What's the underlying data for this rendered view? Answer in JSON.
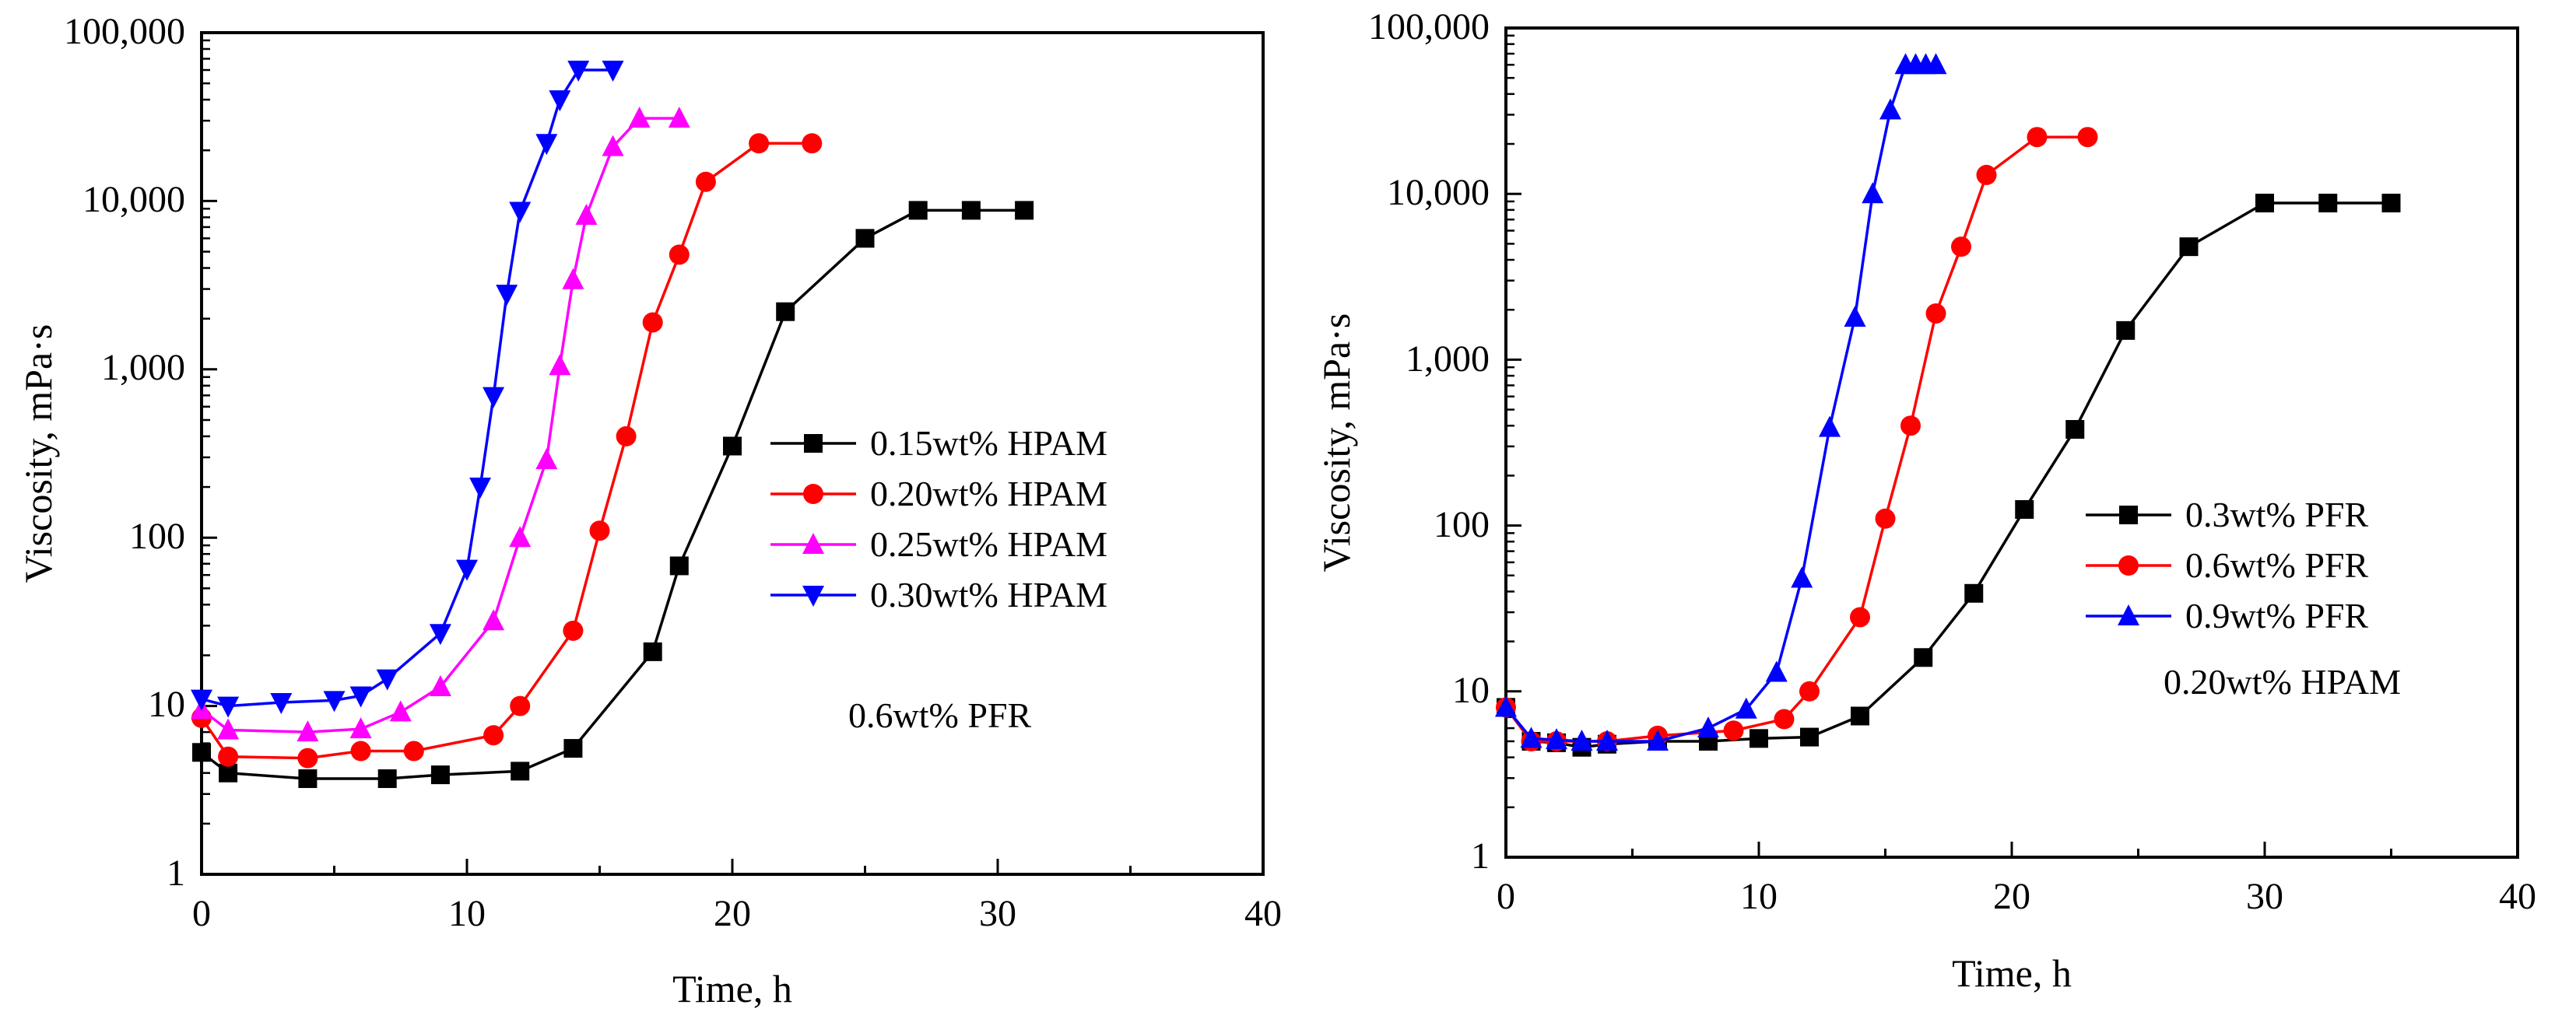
{
  "chart_data": [
    {
      "type": "line",
      "panel": "left",
      "title": "",
      "xlabel": "Time, h",
      "ylabel": "Viscosity, mPa·s",
      "xlim": [
        0,
        40
      ],
      "ylim": [
        1,
        100000
      ],
      "yscale": "log",
      "xticks": [
        0,
        10,
        20,
        30,
        40
      ],
      "xtick_labels": [
        "0",
        "10",
        "20",
        "30",
        "40"
      ],
      "yticks": [
        1,
        10,
        100,
        1000,
        10000,
        100000
      ],
      "ytick_labels": [
        "1",
        "10",
        "100",
        "1,000",
        "10,000",
        "100,000"
      ],
      "grid": false,
      "legend_position": "center-right",
      "annotation": "0.6wt% PFR",
      "series": [
        {
          "name": "0.15wt% HPAM",
          "color": "#000000",
          "marker": "square",
          "x": [
            0,
            1,
            4,
            7,
            9,
            12,
            14,
            17,
            18,
            20,
            22,
            25,
            27,
            29,
            31
          ],
          "y": [
            5.3,
            4.0,
            3.7,
            3.7,
            3.9,
            4.1,
            5.6,
            21,
            68,
            350,
            2200,
            6000,
            8800,
            8800,
            8800
          ]
        },
        {
          "name": "0.20wt% HPAM",
          "color": "#ff0000",
          "marker": "circle",
          "x": [
            0,
            1,
            4,
            6,
            8,
            11,
            12,
            14,
            15,
            16,
            17,
            18,
            19,
            21,
            23
          ],
          "y": [
            8.5,
            5.0,
            4.9,
            5.4,
            5.4,
            6.7,
            10,
            28,
            110,
            400,
            1900,
            4800,
            13000,
            22000,
            22000
          ]
        },
        {
          "name": "0.25wt% HPAM",
          "color": "#ff00ff",
          "marker": "triangle-up",
          "x": [
            0,
            1,
            4,
            6,
            7.5,
            9,
            11,
            12,
            13,
            13.5,
            14,
            14.5,
            15.5,
            16.5,
            18
          ],
          "y": [
            9.5,
            7.2,
            7.0,
            7.3,
            9.2,
            13,
            32,
            100,
            290,
            1050,
            3400,
            8200,
            21000,
            31000,
            31000
          ]
        },
        {
          "name": "0.30wt% HPAM",
          "color": "#0000ff",
          "marker": "triangle-down",
          "x": [
            0,
            1,
            3,
            5,
            6,
            7,
            9,
            10,
            10.5,
            11,
            11.5,
            12,
            13,
            13.5,
            14.2,
            15.5
          ],
          "y": [
            11,
            10,
            10.5,
            10.8,
            11.5,
            14.5,
            27,
            65,
            200,
            690,
            2800,
            8700,
            22000,
            40000,
            60000,
            60000
          ]
        }
      ]
    },
    {
      "type": "line",
      "panel": "right",
      "title": "",
      "xlabel": "Time, h",
      "ylabel": "Viscosity, mPa·s",
      "xlim": [
        0,
        40
      ],
      "ylim": [
        1,
        100000
      ],
      "yscale": "log",
      "xticks": [
        0,
        10,
        20,
        30,
        40
      ],
      "xtick_labels": [
        "0",
        "10",
        "20",
        "30",
        "40"
      ],
      "yticks": [
        1,
        10,
        100,
        1000,
        10000,
        100000
      ],
      "ytick_labels": [
        "1",
        "10",
        "100",
        "1,000",
        "10,000",
        "100,000"
      ],
      "grid": false,
      "legend_position": "center-right",
      "annotation": "0.20wt% HPAM",
      "series": [
        {
          "name": "0.3wt% PFR",
          "color": "#000000",
          "marker": "square",
          "x": [
            0,
            1,
            2,
            3,
            4,
            6,
            8,
            10,
            12,
            14,
            16.5,
            18.5,
            20.5,
            22.5,
            24.5,
            27,
            30,
            32.5,
            35
          ],
          "y": [
            8,
            5,
            4.9,
            4.6,
            4.8,
            5.0,
            5.0,
            5.2,
            5.3,
            7.1,
            16,
            39,
            125,
            380,
            1500,
            4800,
            8800,
            8800,
            8800
          ]
        },
        {
          "name": "0.6wt% PFR",
          "color": "#ff0000",
          "marker": "circle",
          "x": [
            0,
            1,
            2,
            4,
            6,
            9,
            11,
            12,
            14,
            15,
            16,
            17,
            18,
            19,
            21,
            23
          ],
          "y": [
            8,
            5,
            5,
            5,
            5.4,
            5.8,
            6.8,
            10,
            28,
            110,
            400,
            1900,
            4800,
            13000,
            22000,
            22000
          ]
        },
        {
          "name": "0.9wt% PFR",
          "color": "#0000ff",
          "marker": "triangle-up",
          "x": [
            0,
            1,
            2,
            3,
            4,
            6,
            8,
            9.5,
            10.7,
            11.7,
            12.8,
            13.8,
            14.5,
            15.2,
            15.8,
            16.2,
            16.6,
            17
          ],
          "y": [
            8,
            5.2,
            5.1,
            5.0,
            5.0,
            5.0,
            6.0,
            7.8,
            13,
            48,
            390,
            1800,
            10000,
            32000,
            60000,
            60000,
            60000,
            60000
          ]
        }
      ]
    }
  ]
}
